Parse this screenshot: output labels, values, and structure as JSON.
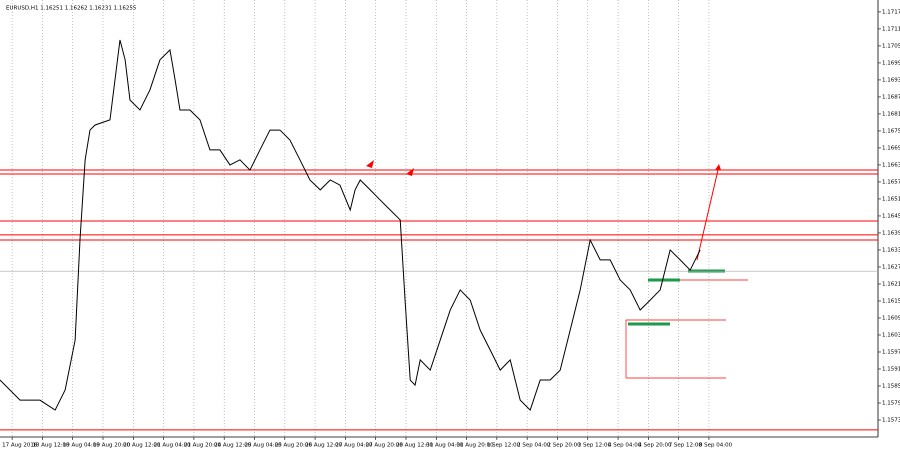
{
  "chart_data": {
    "type": "line",
    "title": "EURUSD,H1  1.16251 1.16262 1.16231 1.16255",
    "color": "#000000",
    "x": [
      -0.4,
      0.26,
      0.92,
      1.42,
      1.75,
      2.08,
      2.24,
      2.41,
      2.57,
      2.74,
      3.23,
      3.56,
      3.73,
      3.89,
      4.22,
      4.55,
      4.88,
      5.21,
      5.38,
      5.54,
      5.87,
      6.2,
      6.53,
      6.86,
      7.19,
      7.52,
      7.85,
      8.18,
      8.51,
      8.84,
      9.17,
      9.5,
      9.83,
      10.17,
      10.5,
      10.82,
      11.16,
      11.32,
      11.49,
      11.82,
      12.15,
      12.48,
      12.81,
      12.97,
      13.14,
      13.3,
      13.47,
      13.8,
      14.13,
      14.46,
      14.79,
      15.12,
      15.45,
      15.78,
      16.11,
      16.44,
      16.77,
      17.1,
      17.43,
      17.76,
      18.09,
      18.42,
      18.75,
      19.08,
      19.41,
      19.74,
      20.07,
      20.4,
      20.73,
      21.06,
      21.39,
      21.72,
      22.05,
      22.38,
      22.71
    ],
    "values": [
      1.15871,
      1.158,
      1.158,
      1.15765,
      1.15836,
      1.16012,
      1.16365,
      1.16648,
      1.16753,
      1.16771,
      1.16789,
      1.17071,
      1.17001,
      1.16859,
      1.16824,
      1.16895,
      1.17001,
      1.17036,
      1.1693,
      1.16824,
      1.16824,
      1.16789,
      1.16683,
      1.16683,
      1.1663,
      1.16648,
      1.16612,
      1.16683,
      1.16753,
      1.16753,
      1.16718,
      1.16648,
      1.16577,
      1.16542,
      1.16577,
      1.16559,
      1.16471,
      1.16542,
      1.16577,
      1.16542,
      1.16506,
      1.16471,
      1.16436,
      1.16153,
      1.15871,
      1.15853,
      1.15942,
      1.15906,
      1.16012,
      1.16118,
      1.16189,
      1.16153,
      1.16047,
      1.15977,
      1.15906,
      1.15942,
      1.158,
      1.15765,
      1.15871,
      1.15871,
      1.15906,
      1.16047,
      1.16189,
      1.16365,
      1.16295,
      1.16295,
      1.16224,
      1.16189,
      1.16118,
      1.16153,
      1.16189,
      1.1633,
      1.16295,
      1.16259,
      1.1633
    ],
    "levels": [
      1.16612,
      1.16598,
      1.16432,
      1.16383,
      1.16365,
      1.15695
    ],
    "level_color": "#ff0000",
    "current_price": 1.16255,
    "xlim": [
      -0.4,
      28.58
    ],
    "ylim": [
      1.1567,
      1.17212
    ],
    "xticks": [
      {
        "value": 0,
        "label": "17 Aug 2016"
      },
      {
        "value": 1,
        "label": "18 Aug 12:00"
      },
      {
        "value": 2,
        "label": "19 Aug 04:00"
      },
      {
        "value": 3,
        "label": "19 Aug 20:00"
      },
      {
        "value": 4,
        "label": "20 Aug 12:00"
      },
      {
        "value": 5,
        "label": "21 Aug 04:00"
      },
      {
        "value": 6,
        "label": "21 Aug 20:00"
      },
      {
        "value": 7,
        "label": "24 Aug 12:00"
      },
      {
        "value": 8,
        "label": "25 Aug 04:00"
      },
      {
        "value": 9,
        "label": "25 Aug 20:00"
      },
      {
        "value": 10,
        "label": "26 Aug 12:00"
      },
      {
        "value": 11,
        "label": "27 Aug 04:00"
      },
      {
        "value": 12,
        "label": "27 Aug 20:00"
      },
      {
        "value": 13,
        "label": "28 Aug 12:00"
      },
      {
        "value": 14,
        "label": "31 Aug 04:00"
      },
      {
        "value": 15,
        "label": "31 Aug 20:00"
      },
      {
        "value": 16,
        "label": "1 Sep 12:00"
      },
      {
        "value": 17,
        "label": "2 Sep 04:00"
      },
      {
        "value": 18,
        "label": "2 Sep 20:00"
      },
      {
        "value": 19,
        "label": "3 Sep 12:00"
      },
      {
        "value": 20,
        "label": "4 Sep 04:00"
      },
      {
        "value": 21,
        "label": "4 Sep 20:00"
      },
      {
        "value": 22,
        "label": "7 Sep 12:00"
      },
      {
        "value": 23,
        "label": "8 Sep 04:00"
      }
    ],
    "yticks": [
      {
        "value": 1.1717,
        "label": "1.17170"
      },
      {
        "value": 1.1711,
        "label": "1.17110"
      },
      {
        "value": 1.1705,
        "label": "1.17050"
      },
      {
        "value": 1.1699,
        "label": "1.16990"
      },
      {
        "value": 1.1693,
        "label": "1.16930"
      },
      {
        "value": 1.1687,
        "label": "1.16870"
      },
      {
        "value": 1.1681,
        "label": "1.16810"
      },
      {
        "value": 1.1675,
        "label": "1.16750"
      },
      {
        "value": 1.1669,
        "label": "1.16690"
      },
      {
        "value": 1.1663,
        "label": "1.16630"
      },
      {
        "value": 1.1657,
        "label": "1.16570"
      },
      {
        "value": 1.1651,
        "label": "1.16510"
      },
      {
        "value": 1.1645,
        "label": "1.16450"
      },
      {
        "value": 1.1639,
        "label": "1.16390"
      },
      {
        "value": 1.1633,
        "label": "1.16330"
      },
      {
        "value": 1.1627,
        "label": "1.16270"
      },
      {
        "value": 1.1621,
        "label": "1.16210"
      },
      {
        "value": 1.1615,
        "label": "1.16150"
      },
      {
        "value": 1.1609,
        "label": "1.16090"
      },
      {
        "value": 1.1603,
        "label": "1.16030"
      },
      {
        "value": 1.1597,
        "label": "1.15970"
      },
      {
        "value": 1.1591,
        "label": "1.15910"
      },
      {
        "value": 1.1585,
        "label": "1.15850"
      },
      {
        "value": 1.1579,
        "label": "1.15790"
      },
      {
        "value": 1.1573,
        "label": "1.15730"
      }
    ],
    "grid": true
  }
}
